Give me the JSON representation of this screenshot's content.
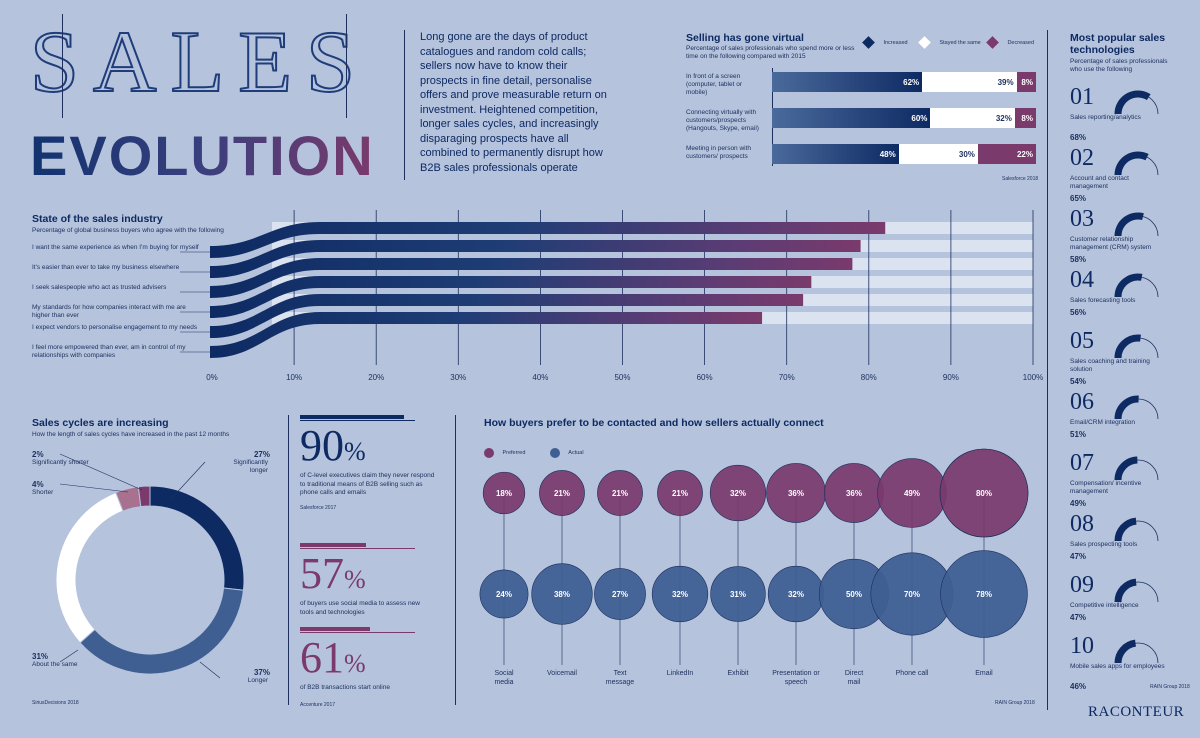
{
  "header": {
    "title_top": "SALES",
    "title_bottom": "EVOLUTION",
    "intro": "Long gone are the days of product catalogues and random cold calls; sellers now have to know their prospects in fine detail, personalise offers and prove measurable return on investment. Heightened competition, longer sales cycles, and increasingly disparaging prospects have all combined to permanently disrupt how B2B sales professionals operate"
  },
  "colors": {
    "navy": "#0e2a63",
    "blue": "#3f5f92",
    "purple": "#7a3a6c",
    "white": "#ffffff",
    "bg": "#b5c3dc"
  },
  "virtual": {
    "title": "Selling has gone virtual",
    "subtitle": "Percentage of sales professionals who spend more or less time on the following compared with 2015",
    "source": "Salesforce 2018"
  },
  "industry": {
    "title": "State of the sales industry",
    "subtitle": "Percentage of global business buyers who agree with the following"
  },
  "cycles": {
    "title": "Sales cycles are increasing",
    "subtitle": "How the length of sales cycles have increased in the past 12 months",
    "source": "SiriusDecisions 2018"
  },
  "stats": [
    {
      "value": "90",
      "pct": "%",
      "fill": 0.9,
      "color": "#0e2a63",
      "text": "of C-level executives claim they never respond to traditional means of B2B selling such as phone calls and emails",
      "source": "Salesforce 2017"
    },
    {
      "value": "57",
      "pct": "%",
      "fill": 0.57,
      "color": "#7a3a6c",
      "text": "of buyers use social media to assess new tools and technologies",
      "source": ""
    },
    {
      "value": "61",
      "pct": "%",
      "fill": 0.61,
      "color": "#7a3a6c",
      "text": "of B2B transactions start online",
      "source": "Accenture 2017"
    }
  ],
  "contact": {
    "title": "How buyers prefer to be contacted and how sellers actually connect",
    "source": "RAIN Group 2018"
  },
  "tech": {
    "title": "Most popular sales technologies",
    "subtitle": "Percentage of sales professionals who use the following",
    "source": "RAIN Group 2018",
    "items": [
      {
        "num": "01",
        "label": "Sales reporting/analytics",
        "value": 68,
        "pct": "68%"
      },
      {
        "num": "02",
        "label": "Account and contact management",
        "value": 65,
        "pct": "65%"
      },
      {
        "num": "03",
        "label": "Customer relationship management (CRM) system",
        "value": 58,
        "pct": "58%"
      },
      {
        "num": "04",
        "label": "Sales forecasting tools",
        "value": 56,
        "pct": "56%"
      },
      {
        "num": "05",
        "label": "Sales coaching and training solution",
        "value": 54,
        "pct": "54%"
      },
      {
        "num": "06",
        "label": "Email/CRM integration",
        "value": 51,
        "pct": "51%"
      },
      {
        "num": "07",
        "label": "Compensation/ incentive management",
        "value": 49,
        "pct": "49%"
      },
      {
        "num": "08",
        "label": "Sales prospecting tools",
        "value": 47,
        "pct": "47%"
      },
      {
        "num": "09",
        "label": "Competitive intelligence",
        "value": 47,
        "pct": "47%"
      },
      {
        "num": "10",
        "label": "Mobile sales apps for employees",
        "value": 46,
        "pct": "46%"
      }
    ]
  },
  "brand": "RACONTEUR",
  "chart_data": [
    {
      "id": "virtual",
      "type": "bar",
      "stacked": true,
      "categories": [
        "In front of a screen (computer, tablet or mobile)",
        "Connecting virtually with customers/prospects (Hangouts, Skype, email)",
        "Meeting in person with customers/ prospects"
      ],
      "series": [
        {
          "name": "Increased",
          "values": [
            62,
            60,
            48
          ],
          "labels": [
            "62%",
            "60%",
            "48%"
          ],
          "color": "#0e2a63"
        },
        {
          "name": "Stayed the same",
          "values": [
            39,
            32,
            30
          ],
          "labels": [
            "39%",
            "32%",
            "30%"
          ],
          "color": "#ffffff"
        },
        {
          "name": "Decreased",
          "values": [
            8,
            8,
            22
          ],
          "labels": [
            "8%",
            "8%",
            "22%"
          ],
          "color": "#7a3a6c"
        }
      ],
      "legend": "top-right"
    },
    {
      "id": "industry",
      "type": "bar",
      "orientation": "horizontal",
      "categories": [
        "I want the same experience as when I'm buying for myself",
        "It's easier than ever to take my business elsewhere",
        "I seek salespeople who act as trusted advisers",
        "My standards for how companies interact with me are higher than ever",
        "I expect vendors to personalise engagement to my needs",
        "I feel more empowered than ever, am in control of my relationships with companies"
      ],
      "values": [
        82,
        79,
        78,
        73,
        72,
        67
      ],
      "xticks": [
        "0%",
        "10%",
        "20%",
        "30%",
        "40%",
        "50%",
        "60%",
        "70%",
        "80%",
        "90%",
        "100%"
      ],
      "xlim": [
        0,
        100
      ],
      "grid": true
    },
    {
      "id": "cycles",
      "type": "pie",
      "donut": true,
      "slices": [
        {
          "label": "Significantly longer",
          "value": 27,
          "pct": "27%",
          "color": "#0e2a63"
        },
        {
          "label": "Longer",
          "value": 37,
          "pct": "37%",
          "color": "#3f5f92"
        },
        {
          "label": "About the same",
          "value": 31,
          "pct": "31%",
          "color": "#ffffff"
        },
        {
          "label": "Shorter",
          "value": 4,
          "pct": "4%",
          "color": "#a8718f"
        },
        {
          "label": "Significantly shorter",
          "value": 2,
          "pct": "2%",
          "color": "#7a3a6c"
        }
      ]
    },
    {
      "id": "contact",
      "type": "scatter",
      "categories": [
        "Social media",
        "Voicemail",
        "Text message",
        "LinkedIn",
        "Exhibit",
        "Presentation or speech",
        "Direct mail",
        "Phone call",
        "Email"
      ],
      "series": [
        {
          "name": "Preferred",
          "values": [
            18,
            21,
            21,
            21,
            32,
            36,
            36,
            49,
            80
          ],
          "labels": [
            "18%",
            "21%",
            "21%",
            "21%",
            "32%",
            "36%",
            "36%",
            "49%",
            "80%"
          ],
          "color": "#7a3a6c"
        },
        {
          "name": "Actual",
          "values": [
            24,
            38,
            27,
            32,
            31,
            32,
            50,
            70,
            78
          ],
          "labels": [
            "24%",
            "38%",
            "27%",
            "32%",
            "31%",
            "32%",
            "50%",
            "70%",
            "78%"
          ],
          "color": "#3f5f92"
        }
      ],
      "legend": "top-left"
    }
  ]
}
